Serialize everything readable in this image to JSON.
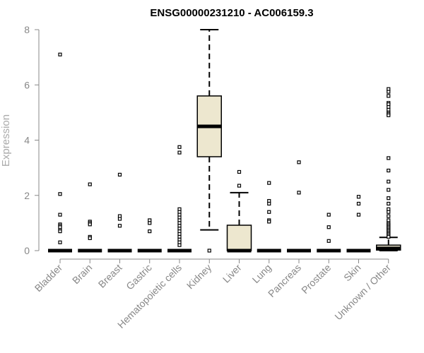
{
  "chart_data": {
    "type": "box",
    "title": "ENSG00000231210 - AC006159.3",
    "xlabel": "",
    "ylabel": "Expression",
    "ylim": [
      0,
      8
    ],
    "yticks": [
      0,
      2,
      4,
      6,
      8
    ],
    "grid": false,
    "legend": "none",
    "colors": {
      "box_fill": "#ede7cf",
      "box_stroke": "#000000",
      "axis": "#888888",
      "outlier": "#000000"
    },
    "categories": [
      "Bladder",
      "Brain",
      "Breast",
      "Gastric",
      "Hematopoietic cells",
      "Kidney",
      "Liver",
      "Lung",
      "Pancreas",
      "Prostate",
      "Skin",
      "Unknown / Other"
    ],
    "boxes": [
      {
        "category": "Bladder",
        "min": 0,
        "q1": 0,
        "median": 0,
        "q3": 0,
        "max": 0,
        "outliers": [
          7.1,
          2.05,
          1.3,
          0.95,
          0.9,
          0.85,
          0.75,
          0.7,
          0.3
        ]
      },
      {
        "category": "Brain",
        "min": 0,
        "q1": 0,
        "median": 0,
        "q3": 0,
        "max": 0,
        "outliers": [
          2.4,
          1.05,
          1.0,
          0.95,
          0.5,
          0.45
        ]
      },
      {
        "category": "Breast",
        "min": 0,
        "q1": 0,
        "median": 0,
        "q3": 0,
        "max": 0,
        "outliers": [
          2.75,
          1.25,
          1.15,
          0.9
        ]
      },
      {
        "category": "Gastric",
        "min": 0,
        "q1": 0,
        "median": 0,
        "q3": 0,
        "max": 0,
        "outliers": [
          1.1,
          1.0,
          0.7
        ]
      },
      {
        "category": "Hematopoietic cells",
        "min": 0,
        "q1": 0,
        "median": 0,
        "q3": 0,
        "max": 0,
        "outliers": [
          3.75,
          3.55,
          1.5,
          1.4,
          1.3,
          1.2,
          1.1,
          1.0,
          0.9,
          0.8,
          0.7,
          0.6,
          0.5,
          0.4,
          0.3,
          0.2
        ]
      },
      {
        "category": "Kidney",
        "min": 0.75,
        "q1": 3.4,
        "median": 4.5,
        "q3": 5.6,
        "max": 8.0,
        "outliers": [
          0
        ]
      },
      {
        "category": "Liver",
        "min": 0,
        "q1": 0,
        "median": 0,
        "q3": 0.92,
        "max": 2.1,
        "outliers": [
          2.85,
          2.35
        ]
      },
      {
        "category": "Lung",
        "min": 0,
        "q1": 0,
        "median": 0,
        "q3": 0,
        "max": 0,
        "outliers": [
          2.45,
          1.8,
          1.7,
          1.4,
          1.1,
          1.05
        ]
      },
      {
        "category": "Pancreas",
        "min": 0,
        "q1": 0,
        "median": 0,
        "q3": 0,
        "max": 0,
        "outliers": [
          3.2,
          2.1
        ]
      },
      {
        "category": "Prostate",
        "min": 0,
        "q1": 0,
        "median": 0,
        "q3": 0,
        "max": 0,
        "outliers": [
          1.3,
          0.85,
          0.35
        ]
      },
      {
        "category": "Skin",
        "min": 0,
        "q1": 0,
        "median": 0,
        "q3": 0,
        "max": 0,
        "outliers": [
          1.95,
          1.7,
          1.3
        ]
      },
      {
        "category": "Unknown / Other",
        "min": 0,
        "q1": 0.02,
        "median": 0.08,
        "q3": 0.2,
        "max": 0.48,
        "outliers": [
          5.85,
          5.75,
          5.6,
          5.35,
          5.3,
          5.2,
          5.1,
          5.0,
          4.95,
          4.9,
          3.35,
          2.9,
          2.5,
          2.2,
          1.9,
          1.7,
          1.5,
          1.4,
          1.25,
          1.1,
          1.0,
          0.95,
          0.9,
          0.85,
          0.8,
          0.75,
          0.7,
          0.65,
          0.6,
          0.55,
          0.5
        ]
      }
    ]
  }
}
